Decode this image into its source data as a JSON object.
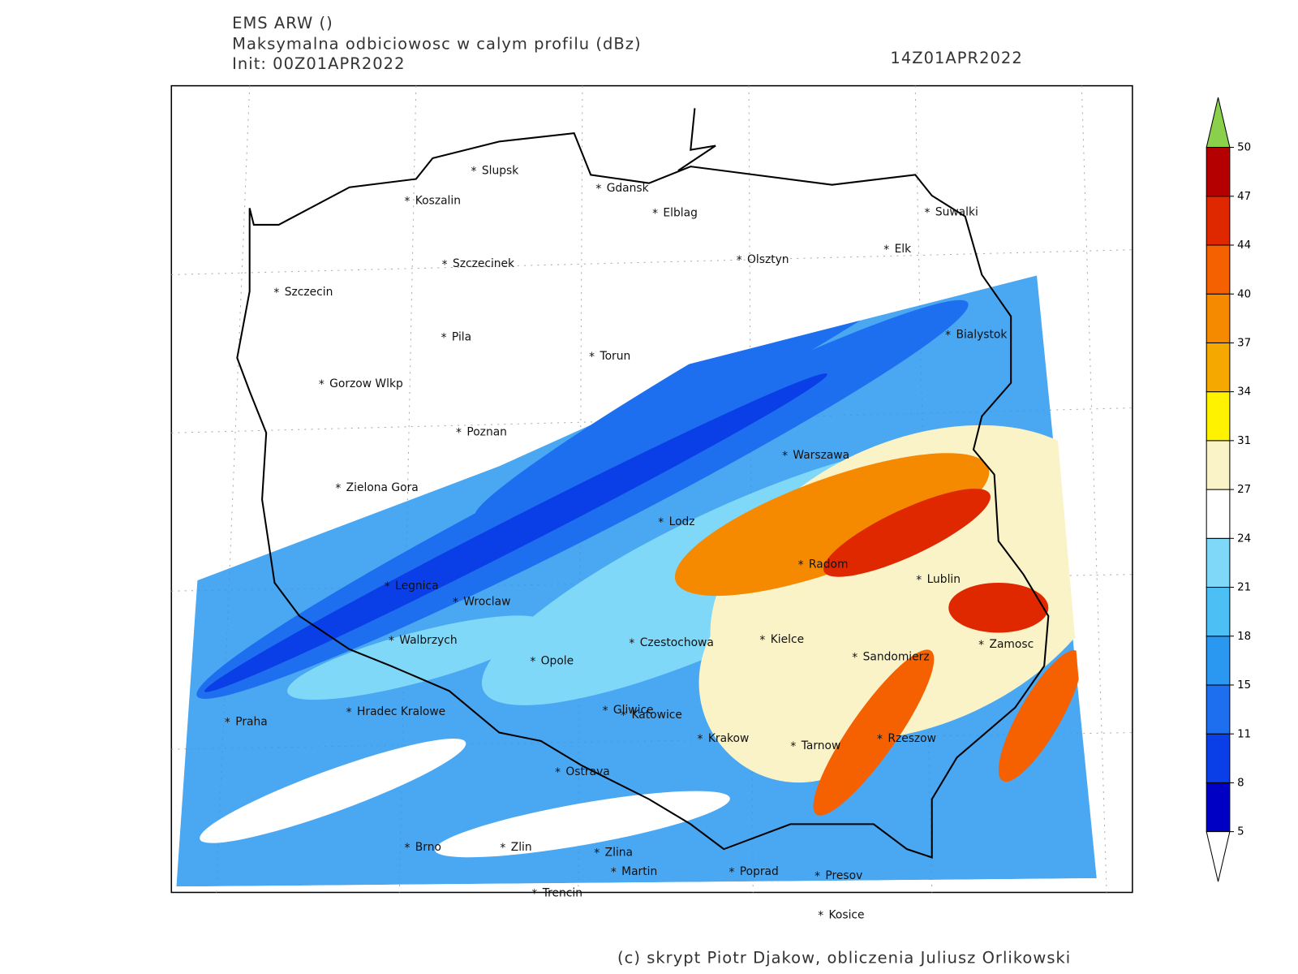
{
  "header": {
    "lines": [
      "EMS ARW ()",
      "Maksymalna odbiciowosc w calym profilu (dBz)",
      "Init: 00Z01APR2022"
    ],
    "valid_time": "14Z01APR2022"
  },
  "map": {
    "cities": [
      "Slupsk",
      "Koszalin",
      "Gdansk",
      "Elblag",
      "Suwalki",
      "Elk",
      "Olsztyn",
      "Szczecinek",
      "Szczecin",
      "Bialystok",
      "Pila",
      "Torun",
      "Gorzow Wlkp",
      "Poznan",
      "Warszawa",
      "Zielona Gora",
      "Lodz",
      "Radom",
      "Lublin",
      "Legnica",
      "Wroclaw",
      "Walbrzych",
      "Czestochowa",
      "Kielce",
      "Zamosc",
      "Sandomierz",
      "Opole",
      "Hradec Kralowe",
      "Gliwice",
      "Katowice",
      "Praha",
      "Krakow",
      "Tarnow",
      "Rzeszow",
      "Ostrava",
      "Brno",
      "Zlin",
      "Zlina",
      "Martin",
      "Poprad",
      "Presov",
      "Trencin",
      "Kosice"
    ],
    "marker": "*"
  },
  "colorbar": {
    "levels": [
      5,
      8,
      11,
      15,
      18,
      21,
      24,
      27,
      31,
      34,
      37,
      40,
      44,
      47,
      50
    ],
    "colors": [
      "#0000c4",
      "#0a3ee6",
      "#1e6ef0",
      "#2a98f0",
      "#4cc0f4",
      "#80d8f8",
      "#ffffff",
      "#fbf3c8",
      "#fff200",
      "#f5a800",
      "#f58a00",
      "#f56000",
      "#e02800",
      "#b40000"
    ],
    "over_color": "#8bd04a",
    "under_color": "#ffffff"
  },
  "footer": "(c) skrypt Piotr Djakow, obliczenia Juliusz Orlikowski"
}
